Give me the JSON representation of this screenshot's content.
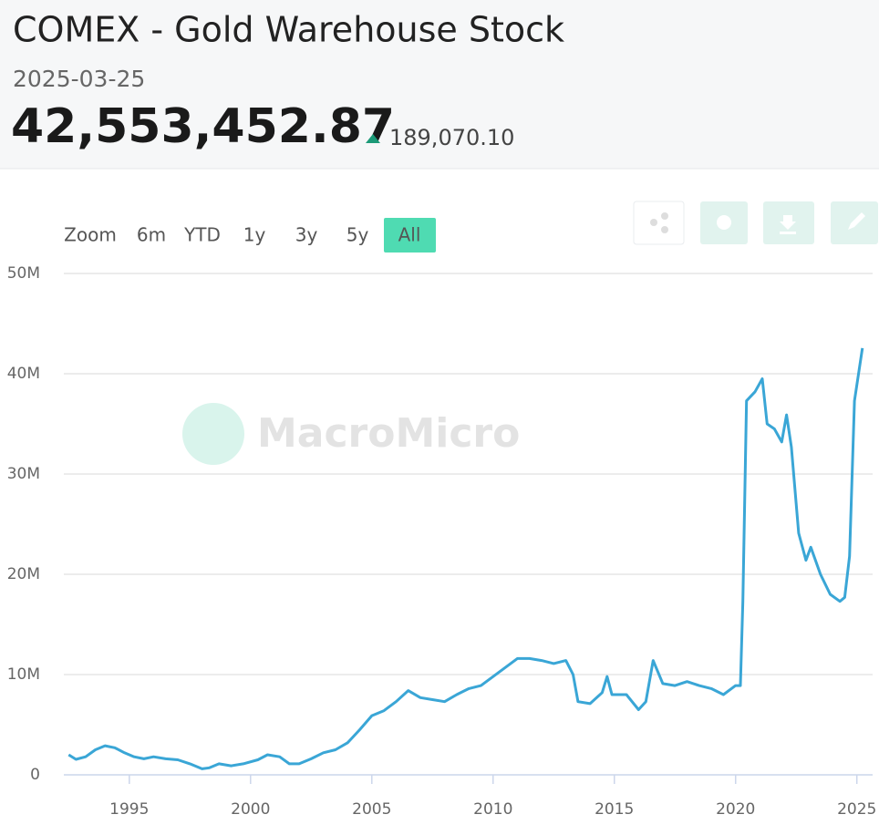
{
  "header": {
    "title": "COMEX - Gold Warehouse Stock",
    "date": "2025-03-25",
    "value": "42,553,452.87",
    "change": "189,070.10"
  },
  "range_selector": [
    "Zoom",
    "6m",
    "YTD",
    "1y",
    "3y",
    "5y",
    "All"
  ],
  "watermark": "MacroMicro",
  "chart_data": {
    "type": "line",
    "color": "#3aa6d6",
    "grid": true,
    "x": [
      1992.5,
      1992.8,
      1993.2,
      1993.6,
      1994.0,
      1994.4,
      1994.8,
      1995.2,
      1995.6,
      1996.0,
      1996.5,
      1997.0,
      1997.5,
      1998.0,
      1998.3,
      1998.7,
      1999.2,
      1999.7,
      2000.3,
      2000.7,
      2001.2,
      2001.6,
      2002.0,
      2002.5,
      2003.0,
      2003.5,
      2004.0,
      2004.5,
      2005.0,
      2005.5,
      2006.0,
      2006.5,
      2007.0,
      2007.5,
      2008.0,
      2008.5,
      2009.0,
      2009.5,
      2010.0,
      2010.5,
      2011.0,
      2011.5,
      2012.0,
      2012.5,
      2013.0,
      2013.3,
      2013.5,
      2014.0,
      2014.5,
      2014.7,
      2014.9,
      2015.5,
      2016.0,
      2016.3,
      2016.6,
      2017.0,
      2017.5,
      2018.0,
      2018.5,
      2019.0,
      2019.5,
      2020.0,
      2020.2,
      2020.3,
      2020.45,
      2020.8,
      2021.1,
      2021.3,
      2021.6,
      2021.9,
      2022.1,
      2022.3,
      2022.6,
      2022.9,
      2023.1,
      2023.5,
      2023.9,
      2024.3,
      2024.5,
      2024.7,
      2024.9,
      2025.23
    ],
    "values": [
      2000000,
      1550000,
      1800000,
      2500000,
      2900000,
      2700000,
      2200000,
      1800000,
      1600000,
      1800000,
      1600000,
      1500000,
      1100000,
      600000,
      700000,
      1100000,
      900000,
      1100000,
      1500000,
      2000000,
      1800000,
      1100000,
      1100000,
      1600000,
      2200000,
      2500000,
      3200000,
      4500000,
      5900000,
      6400000,
      7300000,
      8400000,
      7700000,
      7500000,
      7300000,
      8000000,
      8600000,
      8900000,
      9800000,
      10700000,
      11600000,
      11600000,
      11400000,
      11100000,
      11400000,
      10000000,
      7300000,
      7100000,
      8200000,
      9800000,
      8000000,
      8000000,
      6500000,
      7300000,
      11400000,
      9100000,
      8900000,
      9300000,
      8900000,
      8600000,
      8000000,
      8900000,
      8900000,
      17300000,
      37300000,
      38200000,
      39500000,
      35000000,
      34500000,
      33200000,
      35900000,
      32700000,
      24100000,
      21400000,
      22700000,
      20000000,
      18000000,
      17300000,
      17700000,
      21800000,
      37300000,
      42553452.87
    ],
    "xlim": [
      1992.3,
      2025.65
    ],
    "xticks": [
      1995,
      2000,
      2005,
      2010,
      2015,
      2020,
      2025
    ],
    "ylim": [
      0,
      50000000
    ],
    "yticks": [
      0,
      {
        "value": 10000000,
        "label": "10M"
      },
      {
        "value": 20000000,
        "label": "20M"
      },
      {
        "value": 30000000,
        "label": "30M"
      },
      {
        "value": 40000000,
        "label": "40M"
      },
      {
        "value": 50000000,
        "label": "50M"
      }
    ]
  }
}
